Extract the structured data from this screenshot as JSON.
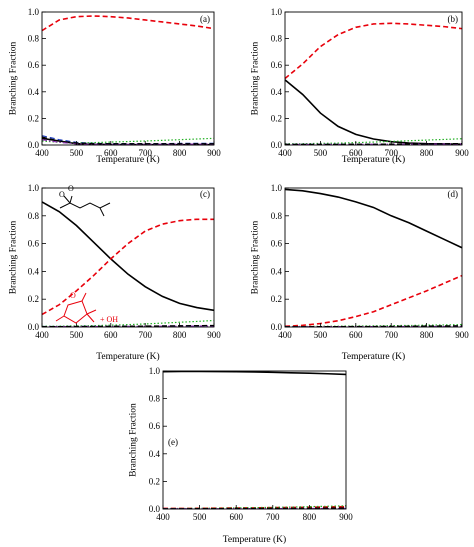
{
  "chart_data": [
    {
      "type": "line",
      "panel_label": "(a)",
      "xlabel": "Temperature (K)",
      "ylabel": "Branching Fraction",
      "xlim": [
        400,
        900
      ],
      "ylim": [
        0.0,
        1.0
      ],
      "xticks": [
        400,
        500,
        600,
        700,
        800,
        900
      ],
      "yticks": [
        0.0,
        0.2,
        0.4,
        0.6,
        0.8,
        1.0
      ],
      "x": [
        400,
        450,
        500,
        550,
        600,
        650,
        700,
        750,
        800,
        850,
        900
      ],
      "series": [
        {
          "color": "#000000",
          "style": "solid",
          "values": [
            0.05,
            0.03,
            0.01,
            0.005,
            0.003,
            0.002,
            0.002,
            0.002,
            0.002,
            0.002,
            0.002
          ]
        },
        {
          "color": "#e8000b",
          "style": "dashed",
          "values": [
            0.86,
            0.94,
            0.965,
            0.97,
            0.965,
            0.955,
            0.94,
            0.925,
            0.91,
            0.895,
            0.875
          ]
        },
        {
          "color": "#1f3fbf",
          "style": "dashed",
          "values": [
            0.07,
            0.04,
            0.02,
            0.012,
            0.01,
            0.01,
            0.01,
            0.01,
            0.012,
            0.012,
            0.012
          ]
        },
        {
          "color": "#22b022",
          "style": "dotted",
          "values": [
            0.03,
            0.02,
            0.015,
            0.018,
            0.022,
            0.026,
            0.03,
            0.035,
            0.04,
            0.045,
            0.05
          ]
        },
        {
          "color": "#8b2bb0",
          "style": "dashdot",
          "values": [
            0.04,
            0.02,
            0.01,
            0.005,
            0.005,
            0.005,
            0.006,
            0.006,
            0.007,
            0.007,
            0.007
          ]
        },
        {
          "color": "#000000",
          "style": "dashed",
          "values": [
            0.06,
            0.03,
            0.015,
            0.01,
            0.01,
            0.01,
            0.01,
            0.01,
            0.01,
            0.01,
            0.01
          ]
        }
      ]
    },
    {
      "type": "line",
      "panel_label": "(b)",
      "xlabel": "Temperature (K)",
      "ylabel": "Branching Fraction",
      "xlim": [
        400,
        900
      ],
      "ylim": [
        0.0,
        1.0
      ],
      "xticks": [
        400,
        500,
        600,
        700,
        800,
        900
      ],
      "yticks": [
        0.0,
        0.2,
        0.4,
        0.6,
        0.8,
        1.0
      ],
      "x": [
        400,
        450,
        500,
        550,
        600,
        650,
        700,
        750,
        800,
        850,
        900
      ],
      "series": [
        {
          "color": "#000000",
          "style": "solid",
          "values": [
            0.49,
            0.38,
            0.24,
            0.14,
            0.08,
            0.045,
            0.025,
            0.015,
            0.01,
            0.008,
            0.006
          ]
        },
        {
          "color": "#e8000b",
          "style": "dashed",
          "values": [
            0.5,
            0.61,
            0.74,
            0.83,
            0.885,
            0.91,
            0.915,
            0.91,
            0.9,
            0.89,
            0.875
          ]
        },
        {
          "color": "#1f3fbf",
          "style": "dashed",
          "values": [
            0.005,
            0.005,
            0.005,
            0.005,
            0.005,
            0.006,
            0.006,
            0.007,
            0.008,
            0.009,
            0.01
          ]
        },
        {
          "color": "#22b022",
          "style": "dotted",
          "values": [
            0.01,
            0.01,
            0.012,
            0.014,
            0.018,
            0.022,
            0.027,
            0.032,
            0.037,
            0.042,
            0.047
          ]
        },
        {
          "color": "#8b2bb0",
          "style": "dashdot",
          "values": [
            0.005,
            0.005,
            0.005,
            0.005,
            0.005,
            0.006,
            0.006,
            0.006,
            0.007,
            0.007,
            0.008
          ]
        },
        {
          "color": "#000000",
          "style": "dashed",
          "values": [
            0.005,
            0.005,
            0.005,
            0.005,
            0.006,
            0.006,
            0.007,
            0.008,
            0.009,
            0.01,
            0.011
          ]
        }
      ]
    },
    {
      "type": "line",
      "panel_label": "(c)",
      "xlabel": "Temperature (K)",
      "ylabel": "Branching Fraction",
      "xlim": [
        400,
        900
      ],
      "ylim": [
        0.0,
        1.0
      ],
      "xticks": [
        400,
        500,
        600,
        700,
        800,
        900
      ],
      "yticks": [
        0.0,
        0.2,
        0.4,
        0.6,
        0.8,
        1.0
      ],
      "x": [
        400,
        450,
        500,
        550,
        600,
        650,
        700,
        750,
        800,
        850,
        900
      ],
      "series": [
        {
          "color": "#000000",
          "style": "solid",
          "values": [
            0.9,
            0.83,
            0.73,
            0.61,
            0.49,
            0.38,
            0.29,
            0.22,
            0.17,
            0.14,
            0.12
          ]
        },
        {
          "color": "#e8000b",
          "style": "dashed",
          "values": [
            0.09,
            0.16,
            0.26,
            0.37,
            0.49,
            0.6,
            0.69,
            0.74,
            0.765,
            0.775,
            0.775
          ]
        },
        {
          "color": "#1f3fbf",
          "style": "dashed",
          "values": [
            0.004,
            0.004,
            0.004,
            0.005,
            0.005,
            0.006,
            0.006,
            0.007,
            0.008,
            0.009,
            0.01
          ]
        },
        {
          "color": "#22b022",
          "style": "dotted",
          "values": [
            0.005,
            0.006,
            0.008,
            0.01,
            0.013,
            0.017,
            0.022,
            0.028,
            0.034,
            0.04,
            0.047
          ]
        },
        {
          "color": "#8b2bb0",
          "style": "dashdot",
          "values": [
            0.003,
            0.003,
            0.003,
            0.004,
            0.004,
            0.005,
            0.005,
            0.006,
            0.006,
            0.007,
            0.007
          ]
        },
        {
          "color": "#000000",
          "style": "dashed",
          "values": [
            0.003,
            0.003,
            0.004,
            0.004,
            0.005,
            0.006,
            0.007,
            0.008,
            0.009,
            0.01,
            0.011
          ]
        }
      ],
      "annotations": [
        {
          "text": "O",
          "color": "#000000"
        },
        {
          "text": "O",
          "color": "#000000"
        },
        {
          "text": "O",
          "color": "#e8000b"
        },
        {
          "text": "+ OH",
          "color": "#e8000b"
        }
      ]
    },
    {
      "type": "line",
      "panel_label": "(d)",
      "xlabel": "Temperature (K)",
      "ylabel": "Branching Fraction",
      "xlim": [
        400,
        900
      ],
      "ylim": [
        0.0,
        1.0
      ],
      "xticks": [
        400,
        500,
        600,
        700,
        800,
        900
      ],
      "yticks": [
        0.0,
        0.2,
        0.4,
        0.6,
        0.8,
        1.0
      ],
      "x": [
        400,
        450,
        500,
        550,
        600,
        650,
        700,
        750,
        800,
        850,
        900
      ],
      "series": [
        {
          "color": "#000000",
          "style": "solid",
          "values": [
            0.99,
            0.98,
            0.96,
            0.935,
            0.9,
            0.86,
            0.8,
            0.75,
            0.69,
            0.63,
            0.57
          ]
        },
        {
          "color": "#e8000b",
          "style": "dashed",
          "values": [
            0.005,
            0.012,
            0.025,
            0.045,
            0.075,
            0.11,
            0.16,
            0.21,
            0.26,
            0.315,
            0.37
          ]
        },
        {
          "color": "#1f3fbf",
          "style": "dashed",
          "values": [
            0.002,
            0.002,
            0.002,
            0.002,
            0.003,
            0.003,
            0.003,
            0.003,
            0.004,
            0.004,
            0.004
          ]
        },
        {
          "color": "#22b022",
          "style": "dotted",
          "values": [
            0.003,
            0.004,
            0.005,
            0.006,
            0.007,
            0.008,
            0.01,
            0.011,
            0.013,
            0.015,
            0.017
          ]
        },
        {
          "color": "#8b2bb0",
          "style": "dashdot",
          "values": [
            0.002,
            0.002,
            0.002,
            0.003,
            0.003,
            0.003,
            0.003,
            0.004,
            0.004,
            0.004,
            0.005
          ]
        },
        {
          "color": "#000000",
          "style": "dashed",
          "values": [
            0.002,
            0.002,
            0.003,
            0.003,
            0.004,
            0.004,
            0.005,
            0.006,
            0.007,
            0.008,
            0.009
          ]
        }
      ]
    },
    {
      "type": "line",
      "panel_label": "(e)",
      "xlabel": "Temperature (K)",
      "ylabel": "Branching Fraction",
      "xlim": [
        400,
        900
      ],
      "ylim": [
        0.0,
        1.0
      ],
      "xticks": [
        400,
        500,
        600,
        700,
        800,
        900
      ],
      "yticks": [
        0.0,
        0.2,
        0.4,
        0.6,
        0.8,
        1.0
      ],
      "x": [
        400,
        450,
        500,
        550,
        600,
        650,
        700,
        750,
        800,
        850,
        900
      ],
      "series": [
        {
          "color": "#000000",
          "style": "solid",
          "values": [
            0.995,
            0.997,
            0.997,
            0.996,
            0.995,
            0.993,
            0.99,
            0.987,
            0.984,
            0.98,
            0.975
          ]
        },
        {
          "color": "#e8000b",
          "style": "dashed",
          "values": [
            0.004,
            0.004,
            0.005,
            0.006,
            0.007,
            0.008,
            0.01,
            0.011,
            0.013,
            0.015,
            0.017
          ]
        },
        {
          "color": "#1f3fbf",
          "style": "dashed",
          "values": [
            0.002,
            0.002,
            0.002,
            0.002,
            0.002,
            0.002,
            0.003,
            0.003,
            0.003,
            0.003,
            0.003
          ]
        },
        {
          "color": "#22b022",
          "style": "dotted",
          "values": [
            0.003,
            0.004,
            0.005,
            0.006,
            0.008,
            0.01,
            0.012,
            0.014,
            0.017,
            0.02,
            0.023
          ]
        },
        {
          "color": "#8b2bb0",
          "style": "dashdot",
          "values": [
            0.002,
            0.002,
            0.002,
            0.002,
            0.003,
            0.003,
            0.003,
            0.004,
            0.004,
            0.004,
            0.005
          ]
        },
        {
          "color": "#000000",
          "style": "dashed",
          "values": [
            0.002,
            0.002,
            0.003,
            0.003,
            0.004,
            0.004,
            0.005,
            0.005,
            0.006,
            0.007,
            0.008
          ]
        }
      ]
    }
  ]
}
